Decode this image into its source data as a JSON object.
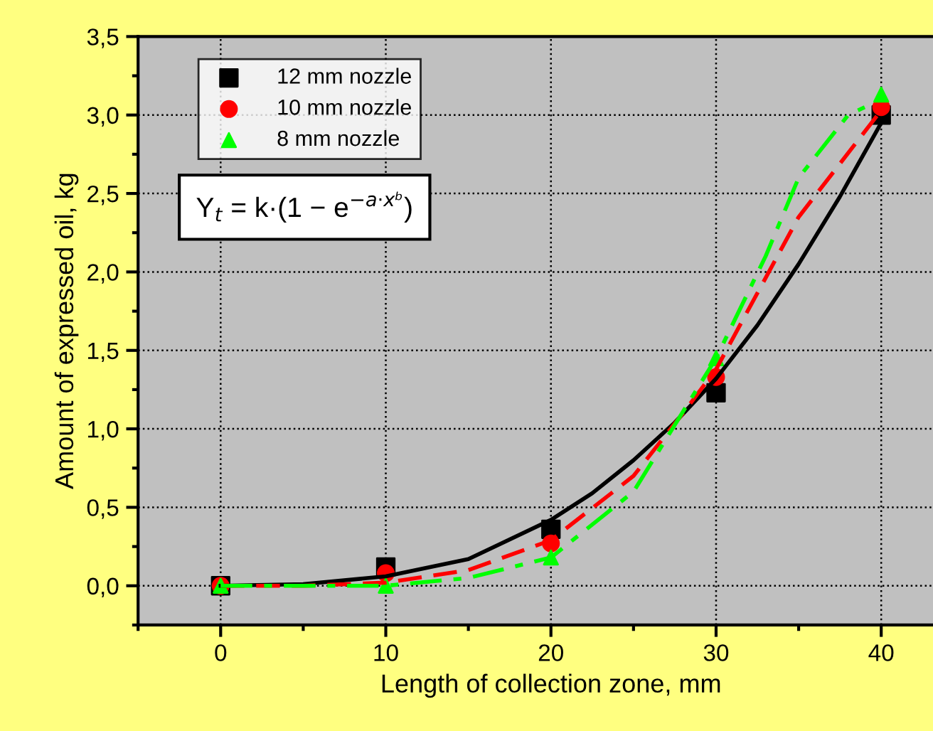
{
  "chart_data": {
    "type": "scatter",
    "xlabel": "Length of collection zone, mm",
    "ylabel": "Amount of expressed oil, kg",
    "x": [
      0,
      10,
      20,
      30,
      40
    ],
    "series": [
      {
        "name": "12 mm nozzle",
        "color": "#000000",
        "marker": "square",
        "values": [
          0,
          0.12,
          0.36,
          1.23,
          3.0
        ]
      },
      {
        "name": "10 mm nozzle",
        "color": "#ff0000",
        "marker": "circle",
        "values": [
          0,
          0.08,
          0.27,
          1.33,
          3.05
        ]
      },
      {
        "name": "8 mm nozzle",
        "color": "#00ff00",
        "marker": "triangle",
        "values": [
          0,
          0.0,
          0.18,
          1.45,
          3.13
        ]
      },
      {
        "type": "line",
        "color": "#000000",
        "line_style": "solid",
        "x": [
          0,
          5,
          10,
          15,
          20,
          22.5,
          25,
          27.5,
          30,
          32.5,
          35,
          37.5,
          40
        ],
        "values": [
          0,
          0.01,
          0.06,
          0.17,
          0.42,
          0.59,
          0.8,
          1.04,
          1.32,
          1.66,
          2.05,
          2.48,
          2.95
        ]
      },
      {
        "type": "line",
        "color": "#ff0000",
        "line_style": "dashed",
        "x": [
          0,
          5,
          10,
          15,
          20,
          25,
          28,
          30,
          35,
          40
        ],
        "values": [
          0,
          0.0,
          0.02,
          0.1,
          0.29,
          0.7,
          1.1,
          1.38,
          2.35,
          3.03
        ]
      },
      {
        "type": "line",
        "color": "#00ff00",
        "line_style": "dashdot",
        "x": [
          0,
          10,
          15,
          20,
          25,
          30,
          33,
          35,
          38,
          39
        ],
        "values": [
          0,
          0.0,
          0.05,
          0.18,
          0.6,
          1.45,
          2.1,
          2.6,
          3.0,
          3.05
        ]
      }
    ],
    "xlim": [
      -5,
      45
    ],
    "xticks": [
      0,
      10,
      20,
      30,
      40
    ],
    "ylim": [
      -0.25,
      3.5
    ],
    "yticks": [
      {
        "value": 0,
        "label": "0,0"
      },
      {
        "value": 0.5,
        "label": "0,5"
      },
      {
        "value": 1,
        "label": "1,0"
      },
      {
        "value": 1.5,
        "label": "1,5"
      },
      {
        "value": 2,
        "label": "2,0"
      },
      {
        "value": 2.5,
        "label": "2,5"
      },
      {
        "value": 3,
        "label": "3,0"
      },
      {
        "value": 3.5,
        "label": "3,5"
      }
    ],
    "grid": true,
    "legend": "top left",
    "annotations": [
      "Y$_{t}$ = k·(1 − e$^{−a·xᵇ}$)"
    ]
  }
}
